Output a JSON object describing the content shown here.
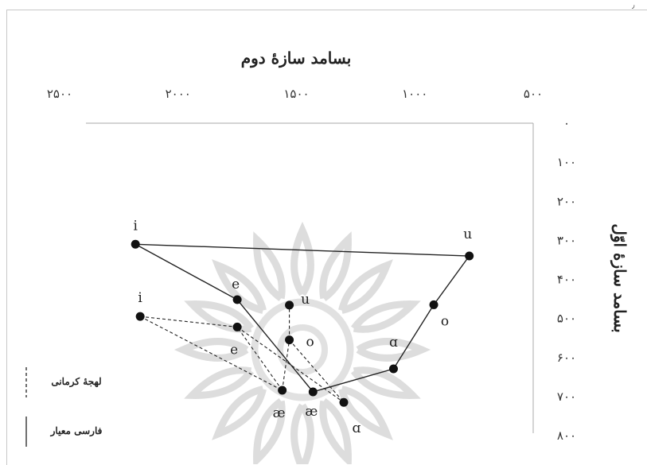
{
  "chart_data": {
    "type": "scatter",
    "title": "",
    "xlabel": "بسامد سازهٔ دوم",
    "ylabel": "بسامد سازهٔ اوّل",
    "x_axis_position": "top",
    "y_axis_position": "right",
    "x_reversed": true,
    "y_reversed": true,
    "xlim": [
      500,
      2500
    ],
    "ylim": [
      0,
      800
    ],
    "x_ticks": [
      "۵۰۰",
      "۱۰۰۰",
      "۱۵۰۰",
      "۲۰۰۰",
      "۲۵۰۰"
    ],
    "y_ticks": [
      "۰",
      "۱۰۰",
      "۲۰۰",
      "۳۰۰",
      "۴۰۰",
      "۵۰۰",
      "۶۰۰",
      "۷۰۰",
      "۸۰۰"
    ],
    "x_tick_values": [
      500,
      1000,
      1500,
      2000,
      2500
    ],
    "y_tick_values": [
      0,
      100,
      200,
      300,
      400,
      500,
      600,
      700,
      800
    ],
    "series": [
      {
        "name": "فارسی معیار",
        "style": "solid",
        "points": [
          {
            "label": "i",
            "x": 2180,
            "y": 310
          },
          {
            "label": "e",
            "x": 1750,
            "y": 452
          },
          {
            "label": "æ",
            "x": 1430,
            "y": 688
          },
          {
            "label": "ɑ",
            "x": 1090,
            "y": 629
          },
          {
            "label": "o",
            "x": 920,
            "y": 465
          },
          {
            "label": "u",
            "x": 770,
            "y": 340
          }
        ]
      },
      {
        "name": "لهجهٔ کرمانی",
        "style": "dashed",
        "points": [
          {
            "label": "i",
            "x": 2160,
            "y": 495
          },
          {
            "label": "e",
            "x": 1750,
            "y": 522
          },
          {
            "label": "æ",
            "x": 1560,
            "y": 684
          },
          {
            "label": "ɑ",
            "x": 1300,
            "y": 715
          },
          {
            "label": "o",
            "x": 1530,
            "y": 555
          },
          {
            "label": "u",
            "x": 1530,
            "y": 466
          }
        ],
        "segments": [
          [
            0,
            2
          ],
          [
            0,
            1
          ],
          [
            2,
            1
          ],
          [
            1,
            3
          ],
          [
            2,
            4
          ],
          [
            4,
            5
          ],
          [
            4,
            3
          ]
        ]
      }
    ],
    "legend": {
      "position": "bottom-left",
      "entries": [
        {
          "label": "لهجهٔ کرمانی",
          "style": "dashed"
        },
        {
          "label": "فارسی معیار",
          "style": "solid"
        }
      ]
    },
    "grid": false,
    "colors": {
      "line": "#222222",
      "point": "#111111",
      "axis": "#aaaaaa",
      "watermark": "#b4b4b4"
    }
  },
  "corner_mark": "٫"
}
